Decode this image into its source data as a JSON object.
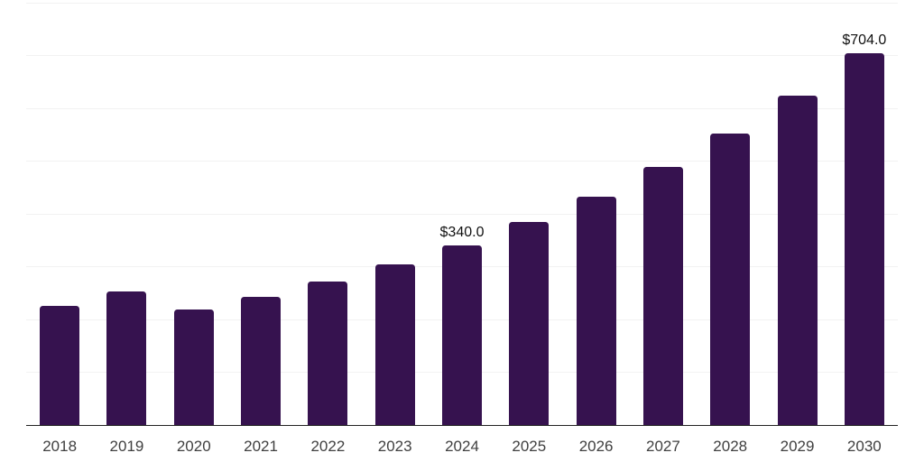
{
  "chart_data": {
    "type": "bar",
    "title": "",
    "xlabel": "",
    "ylabel": "",
    "categories": [
      "2018",
      "2019",
      "2020",
      "2021",
      "2022",
      "2023",
      "2024",
      "2025",
      "2026",
      "2027",
      "2028",
      "2029",
      "2030"
    ],
    "values": [
      225,
      252,
      218,
      242,
      271,
      304,
      340,
      384,
      433,
      489,
      552,
      623,
      704
    ],
    "annotations": [
      {
        "category": "2024",
        "label": "$340.0"
      },
      {
        "category": "2030",
        "label": "$704.0"
      }
    ],
    "ylim": [
      0,
      800
    ],
    "gridline_step": 100,
    "grid": "horizontal-only",
    "legend": "none",
    "y_axis_labels_visible": false,
    "colors": {
      "bar": "#36124F",
      "gridline": "#F2F2F2",
      "axis_line": "#222222",
      "tick_label": "#404040",
      "annotation_text": "#111111",
      "background": "#FFFFFF"
    }
  }
}
